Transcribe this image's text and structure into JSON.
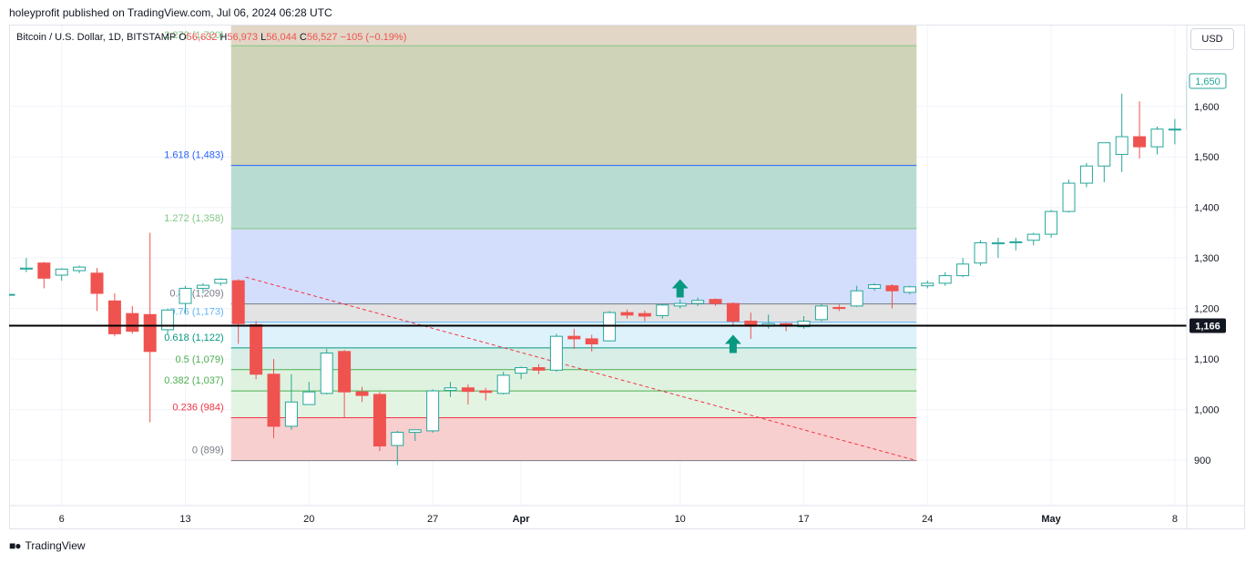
{
  "header": {
    "publisher_line": "holeyprofit published on TradingView.com, Jul 06, 2024 06:28 UTC"
  },
  "legend": {
    "symbol": "Bitcoin / U.S. Dollar, 1D, BITSTAMP",
    "o_label": "O",
    "o_value": "56,632",
    "h_label": "H",
    "h_value": "56,973",
    "l_label": "L",
    "l_value": "56,044",
    "c_label": "C",
    "c_value": "56,527",
    "change": "−105 (−0.19%)"
  },
  "currency_button": "USD",
  "footer": {
    "brand": "TradingView"
  },
  "colors": {
    "up": "#26a69a",
    "down": "#ef5350",
    "grid": "#f0f3fa",
    "price_line": "#000000"
  },
  "chart_data": {
    "type": "candlestick",
    "ylim": [
      810,
      1760
    ],
    "y_ticks": [
      900,
      1000,
      1100,
      1200,
      1300,
      1400,
      1500,
      1600
    ],
    "y_tick_labels": [
      "900",
      "1,000",
      "1,100",
      "1,200",
      "1,300",
      "1,400",
      "1,500",
      "1,600"
    ],
    "x_ticks": [
      {
        "index": 3,
        "label": "6"
      },
      {
        "index": 10,
        "label": "13"
      },
      {
        "index": 17,
        "label": "20"
      },
      {
        "index": 24,
        "label": "27"
      },
      {
        "index": 29,
        "label": "Apr"
      },
      {
        "index": 38,
        "label": "10"
      },
      {
        "index": 45,
        "label": "17"
      },
      {
        "index": 52,
        "label": "24"
      },
      {
        "index": 59,
        "label": "May"
      },
      {
        "index": 66,
        "label": "8"
      }
    ],
    "candles": [
      [
        1228,
        1262,
        1228,
        1212
      ],
      [
        1278,
        1300,
        1280,
        1272
      ],
      [
        1290,
        1292,
        1260,
        1240
      ],
      [
        1266,
        1280,
        1278,
        1255
      ],
      [
        1275,
        1285,
        1282,
        1270
      ],
      [
        1270,
        1280,
        1230,
        1195
      ],
      [
        1215,
        1230,
        1150,
        1145
      ],
      [
        1190,
        1205,
        1155,
        1150
      ],
      [
        1188,
        1350,
        1115,
        975
      ],
      [
        1158,
        1200,
        1197,
        1148
      ],
      [
        1210,
        1245,
        1240,
        1190
      ],
      [
        1240,
        1250,
        1246,
        1230
      ],
      [
        1250,
        1260,
        1258,
        1245
      ],
      [
        1255,
        1258,
        1170,
        1130
      ],
      [
        1168,
        1175,
        1070,
        1060
      ],
      [
        1070,
        1100,
        967,
        943
      ],
      [
        967,
        1070,
        1015,
        960
      ],
      [
        1010,
        1055,
        1035,
        1015
      ],
      [
        1032,
        1120,
        1112,
        1030
      ],
      [
        1115,
        1118,
        1035,
        985
      ],
      [
        1035,
        1045,
        1028,
        1015
      ],
      [
        1030,
        1035,
        928,
        918
      ],
      [
        929,
        958,
        955,
        890
      ],
      [
        955,
        960,
        960,
        938
      ],
      [
        958,
        1040,
        1037,
        954
      ],
      [
        1038,
        1055,
        1043,
        1025
      ],
      [
        1043,
        1050,
        1036,
        1010
      ],
      [
        1037,
        1043,
        1034,
        1018
      ],
      [
        1032,
        1075,
        1068,
        1030
      ],
      [
        1072,
        1085,
        1083,
        1060
      ],
      [
        1083,
        1090,
        1078,
        1070
      ],
      [
        1078,
        1150,
        1145,
        1075
      ],
      [
        1145,
        1160,
        1140,
        1120
      ],
      [
        1140,
        1148,
        1130,
        1115
      ],
      [
        1136,
        1195,
        1192,
        1135
      ],
      [
        1192,
        1198,
        1187,
        1180
      ],
      [
        1190,
        1196,
        1185,
        1175
      ],
      [
        1186,
        1210,
        1207,
        1180
      ],
      [
        1205,
        1218,
        1210,
        1200
      ],
      [
        1210,
        1222,
        1216,
        1205
      ],
      [
        1218,
        1220,
        1210,
        1205
      ],
      [
        1210,
        1212,
        1175,
        1165
      ],
      [
        1175,
        1192,
        1165,
        1140
      ],
      [
        1165,
        1188,
        1170,
        1160
      ],
      [
        1170,
        1172,
        1165,
        1155
      ],
      [
        1164,
        1185,
        1175,
        1160
      ],
      [
        1178,
        1210,
        1205,
        1175
      ],
      [
        1202,
        1208,
        1200,
        1195
      ],
      [
        1205,
        1245,
        1235,
        1203
      ],
      [
        1240,
        1250,
        1247,
        1235
      ],
      [
        1245,
        1248,
        1235,
        1200
      ],
      [
        1232,
        1245,
        1243,
        1228
      ],
      [
        1245,
        1255,
        1250,
        1240
      ],
      [
        1250,
        1272,
        1265,
        1245
      ],
      [
        1265,
        1300,
        1288,
        1262
      ],
      [
        1290,
        1335,
        1330,
        1285
      ],
      [
        1328,
        1340,
        1330,
        1300
      ],
      [
        1332,
        1340,
        1332,
        1315
      ],
      [
        1335,
        1350,
        1347,
        1325
      ],
      [
        1347,
        1395,
        1392,
        1340
      ],
      [
        1392,
        1455,
        1448,
        1390
      ],
      [
        1448,
        1488,
        1482,
        1440
      ],
      [
        1482,
        1510,
        1528,
        1450
      ],
      [
        1505,
        1625,
        1540,
        1470
      ],
      [
        1540,
        1610,
        1520,
        1497
      ],
      [
        1520,
        1560,
        1555,
        1505
      ],
      [
        1555,
        1575,
        1555,
        1525
      ],
      [
        1555,
        1650,
        1648,
        1550
      ]
    ],
    "fib_levels": [
      {
        "ratio": "0",
        "label": "0 (899)",
        "value": 899,
        "color": "#787b86",
        "fill": "#f8cfcf"
      },
      {
        "ratio": "0.236",
        "label": "0.236 (984)",
        "value": 984,
        "color": "#f23645",
        "fill": "#e3f4e3"
      },
      {
        "ratio": "0.382",
        "label": "0.382 (1,037)",
        "value": 1037,
        "color": "#4caf50",
        "fill": "#dff2e0"
      },
      {
        "ratio": "0.5",
        "label": "0.5 (1,079)",
        "value": 1079,
        "color": "#4caf50",
        "fill": "#d8eee6"
      },
      {
        "ratio": "0.618",
        "label": "0.618 (1,122)",
        "value": 1122,
        "color": "#089981",
        "fill": "#def2fb"
      },
      {
        "ratio": "0.76",
        "label": "0.76 (1,173)",
        "value": 1173,
        "color": "#64b5f6",
        "fill": "#e3e3e3"
      },
      {
        "ratio": "0.86",
        "label": "0.86 (1,209)",
        "value": 1209,
        "color": "#787b86",
        "fill": "#d3defc"
      },
      {
        "ratio": "1.272",
        "label": "1.272 (1,358)",
        "value": 1358,
        "color": "#81c784",
        "fill": "#b9dcd2"
      },
      {
        "ratio": "1.618",
        "label": "1.618 (1,483)",
        "value": 1483,
        "color": "#2962ff",
        "fill": "#cfd3b8"
      },
      {
        "ratio": "2.272",
        "label": "2.272 (1,720)",
        "value": 1720,
        "color": "#81c784",
        "fill": "#e2d6c6"
      }
    ],
    "fib_range": {
      "start_index": 13,
      "end_index": 52
    },
    "trend_line": {
      "start_index": 13,
      "start_value": 1262,
      "end_index": 52,
      "end_value": 899,
      "color": "#f23645"
    },
    "markers": [
      {
        "type": "arrow-up",
        "index": 38,
        "value": 1222,
        "color": "#089981"
      },
      {
        "type": "arrow-up",
        "index": 41,
        "value": 1112,
        "color": "#089981"
      }
    ],
    "horizontal_line": {
      "value": 1166,
      "label": "1,166"
    },
    "last_price": {
      "value": 1650,
      "label": "1,650"
    }
  }
}
